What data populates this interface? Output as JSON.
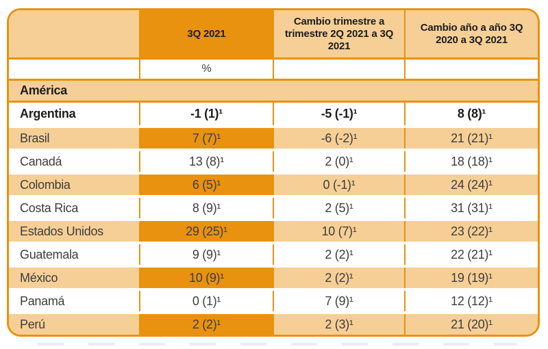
{
  "colors": {
    "accent_orange": "#E8920F",
    "light_orange": "#F6CF96",
    "text_regular": "#3E3D3B",
    "text_bold": "#1D1D1B"
  },
  "chart_data": {
    "type": "table",
    "columns": [
      "",
      "3Q 2021",
      "Cambio trimestre a trimestre 2Q 2021 a 3Q 2021",
      "Cambio año a año 3Q 2020 a 3Q 2021"
    ],
    "unit": "%",
    "section": "América",
    "rows": [
      {
        "name": "Argentina",
        "q3": "-1 (1)¹",
        "qoq": "-5 (-1)¹",
        "yoy": "8 (8)¹"
      },
      {
        "name": "Brasil",
        "q3": "7 (7)¹",
        "qoq": "-6 (-2)¹",
        "yoy": "21 (21)¹"
      },
      {
        "name": "Canadá",
        "q3": "13 (8)¹",
        "qoq": "2 (0)¹",
        "yoy": "18 (18)¹"
      },
      {
        "name": "Colombia",
        "q3": "6 (5)¹",
        "qoq": "0 (-1)¹",
        "yoy": "24 (24)¹"
      },
      {
        "name": "Costa Rica",
        "q3": "8 (9)¹",
        "qoq": "2 (5)¹",
        "yoy": "31 (31)¹"
      },
      {
        "name": "Estados Unidos",
        "q3": "29 (25)¹",
        "qoq": "10 (7)¹",
        "yoy": "23 (22)¹"
      },
      {
        "name": "Guatemala",
        "q3": "9 (9)¹",
        "qoq": "2 (2)¹",
        "yoy": "22 (21)¹"
      },
      {
        "name": "México",
        "q3": "10 (9)¹",
        "qoq": "2 (2)¹",
        "yoy": "19 (19)¹"
      },
      {
        "name": "Panamá",
        "q3": "0 (1)¹",
        "qoq": "7 (9)¹",
        "yoy": "12 (12)¹"
      },
      {
        "name": "Perú",
        "q3": "2 (2)¹",
        "qoq": "2 (3)¹",
        "yoy": "21 (20)¹"
      }
    ]
  }
}
